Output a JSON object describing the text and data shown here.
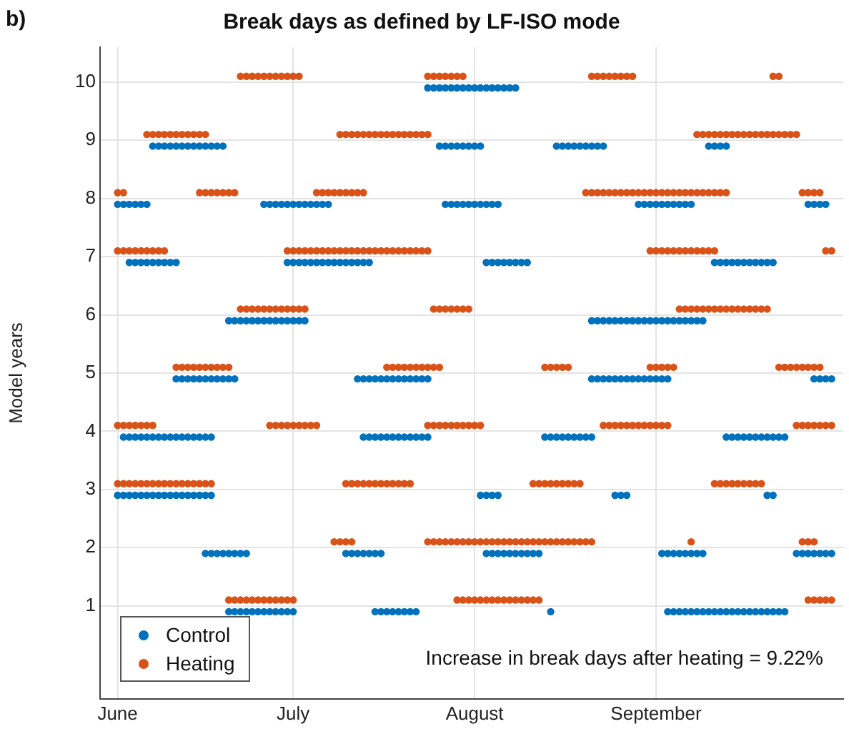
{
  "chart_data": {
    "type": "scatter",
    "title": "Break days as defined by LF-ISO mode",
    "ylabel": "Model years",
    "annotations": [
      "b)",
      "Increase in break days after heating = 9.22%"
    ],
    "xlim": [
      "--05-29",
      "--10-03"
    ],
    "xticks": [
      {
        "value": "--06-01",
        "label": "June"
      },
      {
        "value": "--07-01",
        "label": "July"
      },
      {
        "value": "--08-01",
        "label": "August"
      },
      {
        "value": "--09-01",
        "label": "September"
      }
    ],
    "ylim": [
      -0.6,
      10.6
    ],
    "yticks": [
      1,
      2,
      3,
      4,
      5,
      6,
      7,
      8,
      9,
      10
    ],
    "grid": true,
    "legend": "bottom left",
    "marker": "circle",
    "series": [
      {
        "name": "Control",
        "color": "#0072bd",
        "x": [
          "--07-24",
          "--07-25",
          "--07-26",
          "--07-27",
          "--07-28",
          "--07-29",
          "--07-30",
          "--07-31",
          "--08-01",
          "--08-02",
          "--08-03",
          "--08-04",
          "--08-05",
          "--08-06",
          "--08-07",
          "--08-08",
          "--06-07",
          "--06-08",
          "--06-09",
          "--06-10",
          "--06-11",
          "--06-12",
          "--06-13",
          "--06-14",
          "--06-15",
          "--06-16",
          "--06-17",
          "--06-18",
          "--06-19",
          "--07-26",
          "--07-27",
          "--07-28",
          "--07-29",
          "--07-30",
          "--07-31",
          "--08-01",
          "--08-02",
          "--08-15",
          "--08-16",
          "--08-17",
          "--08-18",
          "--08-19",
          "--08-20",
          "--08-21",
          "--08-22",
          "--08-23",
          "--09-10",
          "--09-11",
          "--09-12",
          "--09-13",
          "--06-01",
          "--06-02",
          "--06-03",
          "--06-04",
          "--06-05",
          "--06-06",
          "--06-26",
          "--06-27",
          "--06-28",
          "--06-29",
          "--06-30",
          "--07-01",
          "--07-02",
          "--07-03",
          "--07-04",
          "--07-05",
          "--07-06",
          "--07-07",
          "--07-27",
          "--07-28",
          "--07-29",
          "--07-30",
          "--07-31",
          "--08-01",
          "--08-02",
          "--08-03",
          "--08-04",
          "--08-05",
          "--08-29",
          "--08-30",
          "--08-31",
          "--09-01",
          "--09-02",
          "--09-03",
          "--09-04",
          "--09-05",
          "--09-06",
          "--09-07",
          "--09-27",
          "--09-28",
          "--09-29",
          "--09-30",
          "--06-03",
          "--06-04",
          "--06-05",
          "--06-06",
          "--06-07",
          "--06-08",
          "--06-09",
          "--06-10",
          "--06-11",
          "--06-30",
          "--07-01",
          "--07-02",
          "--07-03",
          "--07-04",
          "--07-05",
          "--07-06",
          "--07-07",
          "--07-08",
          "--07-09",
          "--07-10",
          "--07-11",
          "--07-12",
          "--07-13",
          "--07-14",
          "--08-03",
          "--08-04",
          "--08-05",
          "--08-06",
          "--08-07",
          "--08-08",
          "--08-09",
          "--08-10",
          "--09-11",
          "--09-12",
          "--09-13",
          "--09-14",
          "--09-15",
          "--09-16",
          "--09-17",
          "--09-18",
          "--09-19",
          "--09-20",
          "--09-21",
          "--06-20",
          "--06-21",
          "--06-22",
          "--06-23",
          "--06-24",
          "--06-25",
          "--06-26",
          "--06-27",
          "--06-28",
          "--06-29",
          "--06-30",
          "--07-01",
          "--07-02",
          "--07-03",
          "--08-21",
          "--08-22",
          "--08-23",
          "--08-24",
          "--08-25",
          "--08-26",
          "--08-27",
          "--08-28",
          "--08-29",
          "--08-30",
          "--08-31",
          "--09-01",
          "--09-02",
          "--09-03",
          "--09-04",
          "--09-05",
          "--09-06",
          "--09-07",
          "--09-08",
          "--09-09",
          "--06-11",
          "--06-12",
          "--06-13",
          "--06-14",
          "--06-15",
          "--06-16",
          "--06-17",
          "--06-18",
          "--06-19",
          "--06-20",
          "--06-21",
          "--07-12",
          "--07-13",
          "--07-14",
          "--07-15",
          "--07-16",
          "--07-17",
          "--07-18",
          "--07-19",
          "--07-20",
          "--07-21",
          "--07-22",
          "--07-23",
          "--07-24",
          "--08-21",
          "--08-22",
          "--08-23",
          "--08-24",
          "--08-25",
          "--08-26",
          "--08-27",
          "--08-28",
          "--08-29",
          "--08-30",
          "--08-31",
          "--09-01",
          "--09-02",
          "--09-03",
          "--09-28",
          "--09-29",
          "--09-30",
          "--10-01",
          "--06-02",
          "--06-03",
          "--06-04",
          "--06-05",
          "--06-06",
          "--06-07",
          "--06-08",
          "--06-09",
          "--06-10",
          "--06-11",
          "--06-12",
          "--06-13",
          "--06-14",
          "--06-15",
          "--06-16",
          "--06-17",
          "--07-13",
          "--07-14",
          "--07-15",
          "--07-16",
          "--07-17",
          "--07-18",
          "--07-19",
          "--07-20",
          "--07-21",
          "--07-22",
          "--07-23",
          "--07-24",
          "--08-13",
          "--08-14",
          "--08-15",
          "--08-16",
          "--08-17",
          "--08-18",
          "--08-19",
          "--08-20",
          "--08-21",
          "--09-13",
          "--09-14",
          "--09-15",
          "--09-16",
          "--09-17",
          "--09-18",
          "--09-19",
          "--09-20",
          "--09-21",
          "--09-22",
          "--09-23",
          "--06-01",
          "--06-02",
          "--06-03",
          "--06-04",
          "--06-05",
          "--06-06",
          "--06-07",
          "--06-08",
          "--06-09",
          "--06-10",
          "--06-11",
          "--06-12",
          "--06-13",
          "--06-14",
          "--06-15",
          "--06-16",
          "--06-17",
          "--08-02",
          "--08-03",
          "--08-04",
          "--08-05",
          "--08-25",
          "--08-26",
          "--08-27",
          "--09-20",
          "--09-21",
          "--06-16",
          "--06-17",
          "--06-18",
          "--06-19",
          "--06-20",
          "--06-21",
          "--06-22",
          "--06-23",
          "--07-10",
          "--07-11",
          "--07-12",
          "--07-13",
          "--07-14",
          "--07-15",
          "--07-16",
          "--08-03",
          "--08-04",
          "--08-05",
          "--08-06",
          "--08-07",
          "--08-08",
          "--08-09",
          "--08-10",
          "--08-11",
          "--08-12",
          "--09-02",
          "--09-03",
          "--09-04",
          "--09-05",
          "--09-06",
          "--09-07",
          "--09-08",
          "--09-09",
          "--09-25",
          "--09-26",
          "--09-27",
          "--09-28",
          "--09-29",
          "--09-30",
          "--10-01",
          "--06-20",
          "--06-21",
          "--06-22",
          "--06-23",
          "--06-24",
          "--06-25",
          "--06-26",
          "--06-27",
          "--06-28",
          "--06-29",
          "--06-30",
          "--07-01",
          "--07-15",
          "--07-16",
          "--07-17",
          "--07-18",
          "--07-19",
          "--07-20",
          "--07-21",
          "--07-22",
          "--08-14",
          "--09-03",
          "--09-04",
          "--09-05",
          "--09-06",
          "--09-07",
          "--09-08",
          "--09-09",
          "--09-10",
          "--09-11",
          "--09-12",
          "--09-13",
          "--09-14",
          "--09-15",
          "--09-16",
          "--09-17",
          "--09-18",
          "--09-19",
          "--09-20",
          "--09-21",
          "--09-22",
          "--09-23"
        ],
        "values": [
          9.9,
          9.9,
          9.9,
          9.9,
          9.9,
          9.9,
          9.9,
          9.9,
          9.9,
          9.9,
          9.9,
          9.9,
          9.9,
          9.9,
          9.9,
          9.9,
          8.9,
          8.9,
          8.9,
          8.9,
          8.9,
          8.9,
          8.9,
          8.9,
          8.9,
          8.9,
          8.9,
          8.9,
          8.9,
          8.9,
          8.9,
          8.9,
          8.9,
          8.9,
          8.9,
          8.9,
          8.9,
          8.9,
          8.9,
          8.9,
          8.9,
          8.9,
          8.9,
          8.9,
          8.9,
          8.9,
          8.9,
          8.9,
          8.9,
          8.9,
          7.9,
          7.9,
          7.9,
          7.9,
          7.9,
          7.9,
          7.9,
          7.9,
          7.9,
          7.9,
          7.9,
          7.9,
          7.9,
          7.9,
          7.9,
          7.9,
          7.9,
          7.9,
          7.9,
          7.9,
          7.9,
          7.9,
          7.9,
          7.9,
          7.9,
          7.9,
          7.9,
          7.9,
          7.9,
          7.9,
          7.9,
          7.9,
          7.9,
          7.9,
          7.9,
          7.9,
          7.9,
          7.9,
          7.9,
          7.9,
          7.9,
          7.9,
          6.9,
          6.9,
          6.9,
          6.9,
          6.9,
          6.9,
          6.9,
          6.9,
          6.9,
          6.9,
          6.9,
          6.9,
          6.9,
          6.9,
          6.9,
          6.9,
          6.9,
          6.9,
          6.9,
          6.9,
          6.9,
          6.9,
          6.9,
          6.9,
          6.9,
          6.9,
          6.9,
          6.9,
          6.9,
          6.9,
          6.9,
          6.9,
          6.9,
          6.9,
          6.9,
          6.9,
          6.9,
          6.9,
          6.9,
          6.9,
          6.9,
          6.9,
          6.9,
          5.9,
          5.9,
          5.9,
          5.9,
          5.9,
          5.9,
          5.9,
          5.9,
          5.9,
          5.9,
          5.9,
          5.9,
          5.9,
          5.9,
          5.9,
          5.9,
          5.9,
          5.9,
          5.9,
          5.9,
          5.9,
          5.9,
          5.9,
          5.9,
          5.9,
          5.9,
          5.9,
          5.9,
          5.9,
          5.9,
          5.9,
          5.9,
          5.9,
          5.9,
          4.9,
          4.9,
          4.9,
          4.9,
          4.9,
          4.9,
          4.9,
          4.9,
          4.9,
          4.9,
          4.9,
          4.9,
          4.9,
          4.9,
          4.9,
          4.9,
          4.9,
          4.9,
          4.9,
          4.9,
          4.9,
          4.9,
          4.9,
          4.9,
          4.9,
          4.9,
          4.9,
          4.9,
          4.9,
          4.9,
          4.9,
          4.9,
          4.9,
          4.9,
          4.9,
          4.9,
          4.9,
          4.9,
          4.9,
          4.9,
          4.9,
          4.9,
          3.9,
          3.9,
          3.9,
          3.9,
          3.9,
          3.9,
          3.9,
          3.9,
          3.9,
          3.9,
          3.9,
          3.9,
          3.9,
          3.9,
          3.9,
          3.9,
          3.9,
          3.9,
          3.9,
          3.9,
          3.9,
          3.9,
          3.9,
          3.9,
          3.9,
          3.9,
          3.9,
          3.9,
          3.9,
          3.9,
          3.9,
          3.9,
          3.9,
          3.9,
          3.9,
          3.9,
          3.9,
          3.9,
          3.9,
          3.9,
          3.9,
          3.9,
          3.9,
          3.9,
          3.9,
          3.9,
          3.9,
          3.9,
          2.9,
          2.9,
          2.9,
          2.9,
          2.9,
          2.9,
          2.9,
          2.9,
          2.9,
          2.9,
          2.9,
          2.9,
          2.9,
          2.9,
          2.9,
          2.9,
          2.9,
          2.9,
          2.9,
          2.9,
          2.9,
          2.9,
          2.9,
          2.9,
          2.9,
          2.9,
          1.9,
          1.9,
          1.9,
          1.9,
          1.9,
          1.9,
          1.9,
          1.9,
          1.9,
          1.9,
          1.9,
          1.9,
          1.9,
          1.9,
          1.9,
          1.9,
          1.9,
          1.9,
          1.9,
          1.9,
          1.9,
          1.9,
          1.9,
          1.9,
          1.9,
          1.9,
          1.9,
          1.9,
          1.9,
          1.9,
          1.9,
          1.9,
          1.9,
          1.9,
          1.9,
          1.9,
          1.9,
          1.9,
          1.9,
          1.9,
          0.9,
          0.9,
          0.9,
          0.9,
          0.9,
          0.9,
          0.9,
          0.9,
          0.9,
          0.9,
          0.9,
          0.9,
          0.9,
          0.9,
          0.9,
          0.9,
          0.9,
          0.9,
          0.9,
          0.9,
          0.9,
          0.9,
          0.9,
          0.9,
          0.9,
          0.9,
          0.9,
          0.9,
          0.9,
          0.9,
          0.9,
          0.9,
          0.9,
          0.9,
          0.9,
          0.9,
          0.9,
          0.9,
          0.9,
          0.9,
          0.9,
          0.9
        ]
      },
      {
        "name": "Heating",
        "color": "#d95319",
        "x": [
          "--06-22",
          "--06-23",
          "--06-24",
          "--06-25",
          "--06-26",
          "--06-27",
          "--06-28",
          "--06-29",
          "--06-30",
          "--07-01",
          "--07-02",
          "--07-24",
          "--07-25",
          "--07-26",
          "--07-27",
          "--07-28",
          "--07-29",
          "--07-30",
          "--08-21",
          "--08-22",
          "--08-23",
          "--08-24",
          "--08-25",
          "--08-26",
          "--08-27",
          "--08-28",
          "--09-21",
          "--09-22",
          "--06-06",
          "--06-07",
          "--06-08",
          "--06-09",
          "--06-10",
          "--06-11",
          "--06-12",
          "--06-13",
          "--06-14",
          "--06-15",
          "--06-16",
          "--07-09",
          "--07-10",
          "--07-11",
          "--07-12",
          "--07-13",
          "--07-14",
          "--07-15",
          "--07-16",
          "--07-17",
          "--07-18",
          "--07-19",
          "--07-20",
          "--07-21",
          "--07-22",
          "--07-23",
          "--07-24",
          "--09-08",
          "--09-09",
          "--09-10",
          "--09-11",
          "--09-12",
          "--09-13",
          "--09-14",
          "--09-15",
          "--09-16",
          "--09-17",
          "--09-18",
          "--09-19",
          "--09-20",
          "--09-21",
          "--09-22",
          "--09-23",
          "--09-24",
          "--09-25",
          "--06-01",
          "--06-02",
          "--06-15",
          "--06-16",
          "--06-17",
          "--06-18",
          "--06-19",
          "--06-20",
          "--06-21",
          "--07-05",
          "--07-06",
          "--07-07",
          "--07-08",
          "--07-09",
          "--07-10",
          "--07-11",
          "--07-12",
          "--07-13",
          "--08-20",
          "--08-21",
          "--08-22",
          "--08-23",
          "--08-24",
          "--08-25",
          "--08-26",
          "--08-27",
          "--08-28",
          "--08-29",
          "--08-30",
          "--08-31",
          "--09-01",
          "--09-02",
          "--09-03",
          "--09-04",
          "--09-05",
          "--09-06",
          "--09-07",
          "--09-08",
          "--09-09",
          "--09-10",
          "--09-11",
          "--09-12",
          "--09-13",
          "--09-26",
          "--09-27",
          "--09-28",
          "--09-29",
          "--06-01",
          "--06-02",
          "--06-03",
          "--06-04",
          "--06-05",
          "--06-06",
          "--06-07",
          "--06-08",
          "--06-09",
          "--06-30",
          "--07-01",
          "--07-02",
          "--07-03",
          "--07-04",
          "--07-05",
          "--07-06",
          "--07-07",
          "--07-08",
          "--07-09",
          "--07-10",
          "--07-11",
          "--07-12",
          "--07-13",
          "--07-14",
          "--07-15",
          "--07-16",
          "--07-17",
          "--07-18",
          "--07-19",
          "--07-20",
          "--07-21",
          "--07-22",
          "--07-23",
          "--07-24",
          "--08-31",
          "--09-01",
          "--09-02",
          "--09-03",
          "--09-04",
          "--09-05",
          "--09-06",
          "--09-07",
          "--09-08",
          "--09-09",
          "--09-10",
          "--09-11",
          "--09-30",
          "--10-01",
          "--06-22",
          "--06-23",
          "--06-24",
          "--06-25",
          "--06-26",
          "--06-27",
          "--06-28",
          "--06-29",
          "--06-30",
          "--07-01",
          "--07-02",
          "--07-03",
          "--07-25",
          "--07-26",
          "--07-27",
          "--07-28",
          "--07-29",
          "--07-30",
          "--07-31",
          "--09-05",
          "--09-06",
          "--09-07",
          "--09-08",
          "--09-09",
          "--09-10",
          "--09-11",
          "--09-12",
          "--09-13",
          "--09-14",
          "--09-15",
          "--09-16",
          "--09-17",
          "--09-18",
          "--09-19",
          "--09-20",
          "--06-11",
          "--06-12",
          "--06-13",
          "--06-14",
          "--06-15",
          "--06-16",
          "--06-17",
          "--06-18",
          "--06-19",
          "--06-20",
          "--07-17",
          "--07-18",
          "--07-19",
          "--07-20",
          "--07-21",
          "--07-22",
          "--07-23",
          "--07-24",
          "--07-25",
          "--07-26",
          "--08-13",
          "--08-14",
          "--08-15",
          "--08-16",
          "--08-17",
          "--08-31",
          "--09-01",
          "--09-02",
          "--09-03",
          "--09-04",
          "--09-22",
          "--09-23",
          "--09-24",
          "--09-25",
          "--09-26",
          "--09-27",
          "--09-28",
          "--09-29",
          "--06-01",
          "--06-02",
          "--06-03",
          "--06-04",
          "--06-05",
          "--06-06",
          "--06-07",
          "--06-27",
          "--06-28",
          "--06-29",
          "--06-30",
          "--07-01",
          "--07-02",
          "--07-03",
          "--07-04",
          "--07-05",
          "--07-24",
          "--07-25",
          "--07-26",
          "--07-27",
          "--07-28",
          "--07-29",
          "--07-30",
          "--07-31",
          "--08-01",
          "--08-02",
          "--08-23",
          "--08-24",
          "--08-25",
          "--08-26",
          "--08-27",
          "--08-28",
          "--08-29",
          "--08-30",
          "--08-31",
          "--09-01",
          "--09-02",
          "--09-03",
          "--09-25",
          "--09-26",
          "--09-27",
          "--09-28",
          "--09-29",
          "--09-30",
          "--10-01",
          "--06-01",
          "--06-02",
          "--06-03",
          "--06-04",
          "--06-05",
          "--06-06",
          "--06-07",
          "--06-08",
          "--06-09",
          "--06-10",
          "--06-11",
          "--06-12",
          "--06-13",
          "--06-14",
          "--06-15",
          "--06-16",
          "--06-17",
          "--07-10",
          "--07-11",
          "--07-12",
          "--07-13",
          "--07-14",
          "--07-15",
          "--07-16",
          "--07-17",
          "--07-18",
          "--07-19",
          "--07-20",
          "--07-21",
          "--08-11",
          "--08-12",
          "--08-13",
          "--08-14",
          "--08-15",
          "--08-16",
          "--08-17",
          "--08-18",
          "--08-19",
          "--09-11",
          "--09-12",
          "--09-13",
          "--09-14",
          "--09-15",
          "--09-16",
          "--09-17",
          "--09-18",
          "--09-19",
          "--07-08",
          "--07-09",
          "--07-10",
          "--07-11",
          "--07-24",
          "--07-25",
          "--07-26",
          "--07-27",
          "--07-28",
          "--07-29",
          "--07-30",
          "--07-31",
          "--08-01",
          "--08-02",
          "--08-03",
          "--08-04",
          "--08-05",
          "--08-06",
          "--08-07",
          "--08-08",
          "--08-09",
          "--08-10",
          "--08-11",
          "--08-12",
          "--08-13",
          "--08-14",
          "--08-15",
          "--08-16",
          "--08-17",
          "--08-18",
          "--08-19",
          "--08-20",
          "--08-21",
          "--09-07",
          "--09-26",
          "--09-27",
          "--09-28",
          "--06-20",
          "--06-21",
          "--06-22",
          "--06-23",
          "--06-24",
          "--06-25",
          "--06-26",
          "--06-27",
          "--06-28",
          "--06-29",
          "--06-30",
          "--07-01",
          "--07-29",
          "--07-30",
          "--07-31",
          "--08-01",
          "--08-02",
          "--08-03",
          "--08-04",
          "--08-05",
          "--08-06",
          "--08-07",
          "--08-08",
          "--08-09",
          "--08-10",
          "--08-11",
          "--08-12",
          "--09-27",
          "--09-28",
          "--09-29",
          "--09-30",
          "--10-01"
        ],
        "values": [
          10.1,
          10.1,
          10.1,
          10.1,
          10.1,
          10.1,
          10.1,
          10.1,
          10.1,
          10.1,
          10.1,
          10.1,
          10.1,
          10.1,
          10.1,
          10.1,
          10.1,
          10.1,
          10.1,
          10.1,
          10.1,
          10.1,
          10.1,
          10.1,
          10.1,
          10.1,
          10.1,
          10.1,
          9.1,
          9.1,
          9.1,
          9.1,
          9.1,
          9.1,
          9.1,
          9.1,
          9.1,
          9.1,
          9.1,
          9.1,
          9.1,
          9.1,
          9.1,
          9.1,
          9.1,
          9.1,
          9.1,
          9.1,
          9.1,
          9.1,
          9.1,
          9.1,
          9.1,
          9.1,
          9.1,
          9.1,
          9.1,
          9.1,
          9.1,
          9.1,
          9.1,
          9.1,
          9.1,
          9.1,
          9.1,
          9.1,
          9.1,
          9.1,
          9.1,
          9.1,
          9.1,
          9.1,
          9.1,
          8.1,
          8.1,
          8.1,
          8.1,
          8.1,
          8.1,
          8.1,
          8.1,
          8.1,
          8.1,
          8.1,
          8.1,
          8.1,
          8.1,
          8.1,
          8.1,
          8.1,
          8.1,
          8.1,
          8.1,
          8.1,
          8.1,
          8.1,
          8.1,
          8.1,
          8.1,
          8.1,
          8.1,
          8.1,
          8.1,
          8.1,
          8.1,
          8.1,
          8.1,
          8.1,
          8.1,
          8.1,
          8.1,
          8.1,
          8.1,
          8.1,
          8.1,
          8.1,
          8.1,
          8.1,
          8.1,
          8.1,
          7.1,
          7.1,
          7.1,
          7.1,
          7.1,
          7.1,
          7.1,
          7.1,
          7.1,
          7.1,
          7.1,
          7.1,
          7.1,
          7.1,
          7.1,
          7.1,
          7.1,
          7.1,
          7.1,
          7.1,
          7.1,
          7.1,
          7.1,
          7.1,
          7.1,
          7.1,
          7.1,
          7.1,
          7.1,
          7.1,
          7.1,
          7.1,
          7.1,
          7.1,
          7.1,
          7.1,
          7.1,
          7.1,
          7.1,
          7.1,
          7.1,
          7.1,
          7.1,
          7.1,
          7.1,
          7.1,
          7.1,
          7.1,
          6.1,
          6.1,
          6.1,
          6.1,
          6.1,
          6.1,
          6.1,
          6.1,
          6.1,
          6.1,
          6.1,
          6.1,
          6.1,
          6.1,
          6.1,
          6.1,
          6.1,
          6.1,
          6.1,
          6.1,
          6.1,
          6.1,
          6.1,
          6.1,
          6.1,
          6.1,
          6.1,
          6.1,
          6.1,
          6.1,
          6.1,
          6.1,
          6.1,
          6.1,
          6.1,
          5.1,
          5.1,
          5.1,
          5.1,
          5.1,
          5.1,
          5.1,
          5.1,
          5.1,
          5.1,
          5.1,
          5.1,
          5.1,
          5.1,
          5.1,
          5.1,
          5.1,
          5.1,
          5.1,
          5.1,
          5.1,
          5.1,
          5.1,
          5.1,
          5.1,
          5.1,
          5.1,
          5.1,
          5.1,
          5.1,
          5.1,
          5.1,
          5.1,
          5.1,
          5.1,
          5.1,
          5.1,
          5.1,
          4.1,
          4.1,
          4.1,
          4.1,
          4.1,
          4.1,
          4.1,
          4.1,
          4.1,
          4.1,
          4.1,
          4.1,
          4.1,
          4.1,
          4.1,
          4.1,
          4.1,
          4.1,
          4.1,
          4.1,
          4.1,
          4.1,
          4.1,
          4.1,
          4.1,
          4.1,
          4.1,
          4.1,
          4.1,
          4.1,
          4.1,
          4.1,
          4.1,
          4.1,
          4.1,
          4.1,
          4.1,
          4.1,
          4.1,
          4.1,
          4.1,
          4.1,
          4.1,
          4.1,
          4.1,
          3.1,
          3.1,
          3.1,
          3.1,
          3.1,
          3.1,
          3.1,
          3.1,
          3.1,
          3.1,
          3.1,
          3.1,
          3.1,
          3.1,
          3.1,
          3.1,
          3.1,
          3.1,
          3.1,
          3.1,
          3.1,
          3.1,
          3.1,
          3.1,
          3.1,
          3.1,
          3.1,
          3.1,
          3.1,
          3.1,
          3.1,
          3.1,
          3.1,
          3.1,
          3.1,
          3.1,
          3.1,
          3.1,
          3.1,
          3.1,
          3.1,
          3.1,
          3.1,
          3.1,
          3.1,
          3.1,
          3.1,
          2.1,
          2.1,
          2.1,
          2.1,
          2.1,
          2.1,
          2.1,
          2.1,
          2.1,
          2.1,
          2.1,
          2.1,
          2.1,
          2.1,
          2.1,
          2.1,
          2.1,
          2.1,
          2.1,
          2.1,
          2.1,
          2.1,
          2.1,
          2.1,
          2.1,
          2.1,
          2.1,
          2.1,
          2.1,
          2.1,
          2.1,
          2.1,
          2.1,
          2.1,
          2.1,
          2.1,
          2.1,
          1.1,
          1.1,
          1.1,
          1.1,
          1.1,
          1.1,
          1.1,
          1.1,
          1.1,
          1.1,
          1.1,
          1.1,
          1.1,
          1.1,
          1.1,
          1.1,
          1.1,
          1.1,
          1.1,
          1.1,
          1.1,
          1.1,
          1.1,
          1.1,
          1.1,
          1.1,
          1.1,
          1.1,
          1.1,
          1.1,
          1.1,
          1.1
        ]
      }
    ]
  }
}
